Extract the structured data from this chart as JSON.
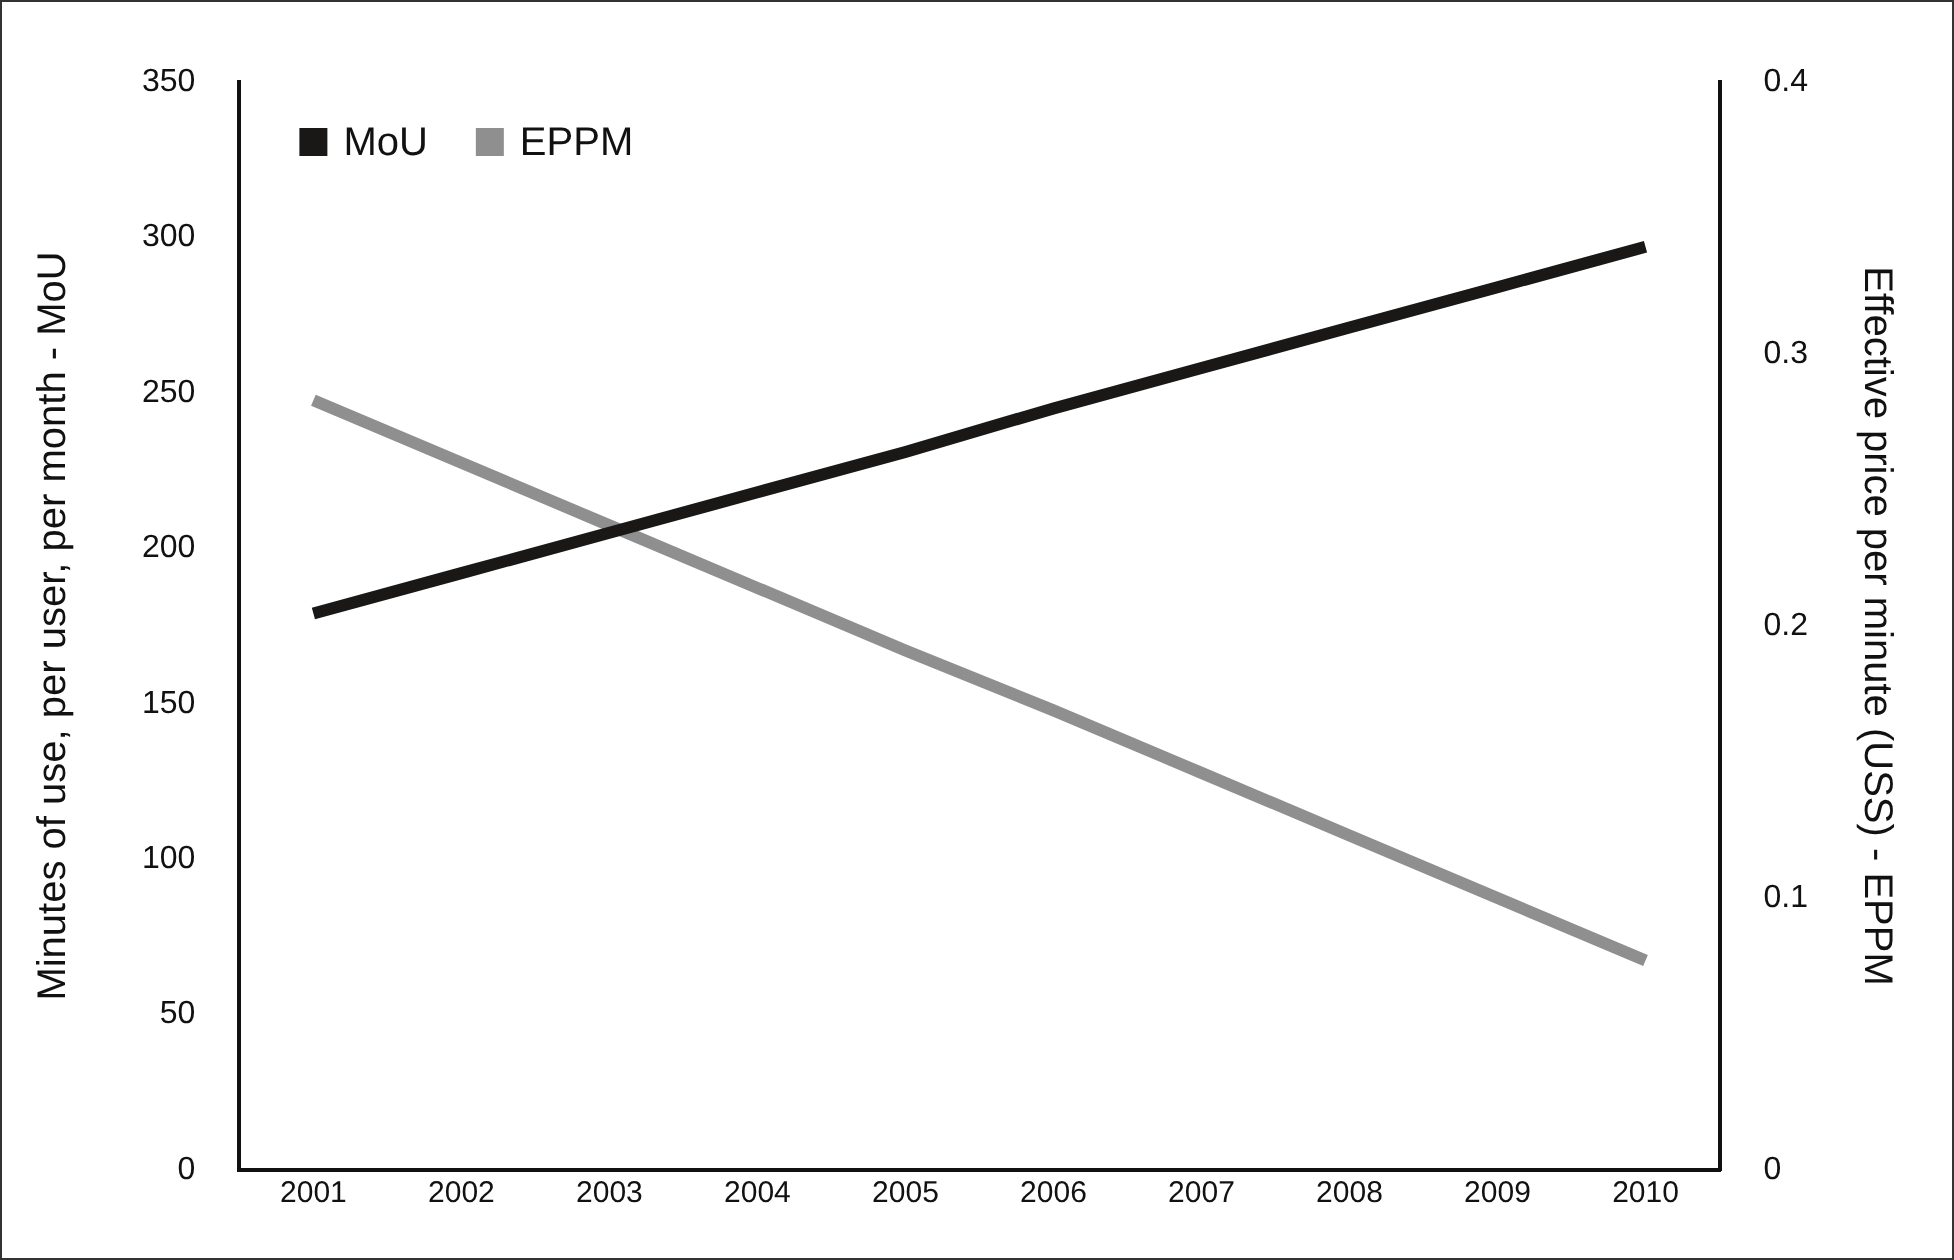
{
  "chart_data": {
    "type": "line",
    "ylabel": "Minutes of use, per user, per month - MoU",
    "y2label": "Effective price per minute (USS) - EPPM",
    "categories": [
      "2001",
      "2002",
      "2003",
      "2004",
      "2005",
      "2006",
      "2007",
      "2008",
      "2009",
      "2010"
    ],
    "series": [
      {
        "name": "MoU",
        "color": "#1a1717",
        "values": [
          179,
          192,
          205,
          218,
          231,
          245,
          258,
          271,
          284,
          297
        ]
      },
      {
        "name": "EPPM",
        "color": "#8f8f8f",
        "axis": "y2",
        "values": [
          0.283,
          0.26,
          0.237,
          0.214,
          0.191,
          0.169,
          0.146,
          0.123,
          0.1,
          0.077
        ]
      }
    ],
    "ylim": [
      0,
      350
    ],
    "yticks": [
      0,
      50,
      100,
      150,
      200,
      250,
      300,
      350
    ],
    "y2lim": [
      0,
      0.4
    ],
    "y2ticks": [
      0,
      0.1,
      0.2,
      0.3,
      0.4
    ],
    "grid": false,
    "legend": "top left",
    "marker": "none",
    "line_style": "solid"
  }
}
